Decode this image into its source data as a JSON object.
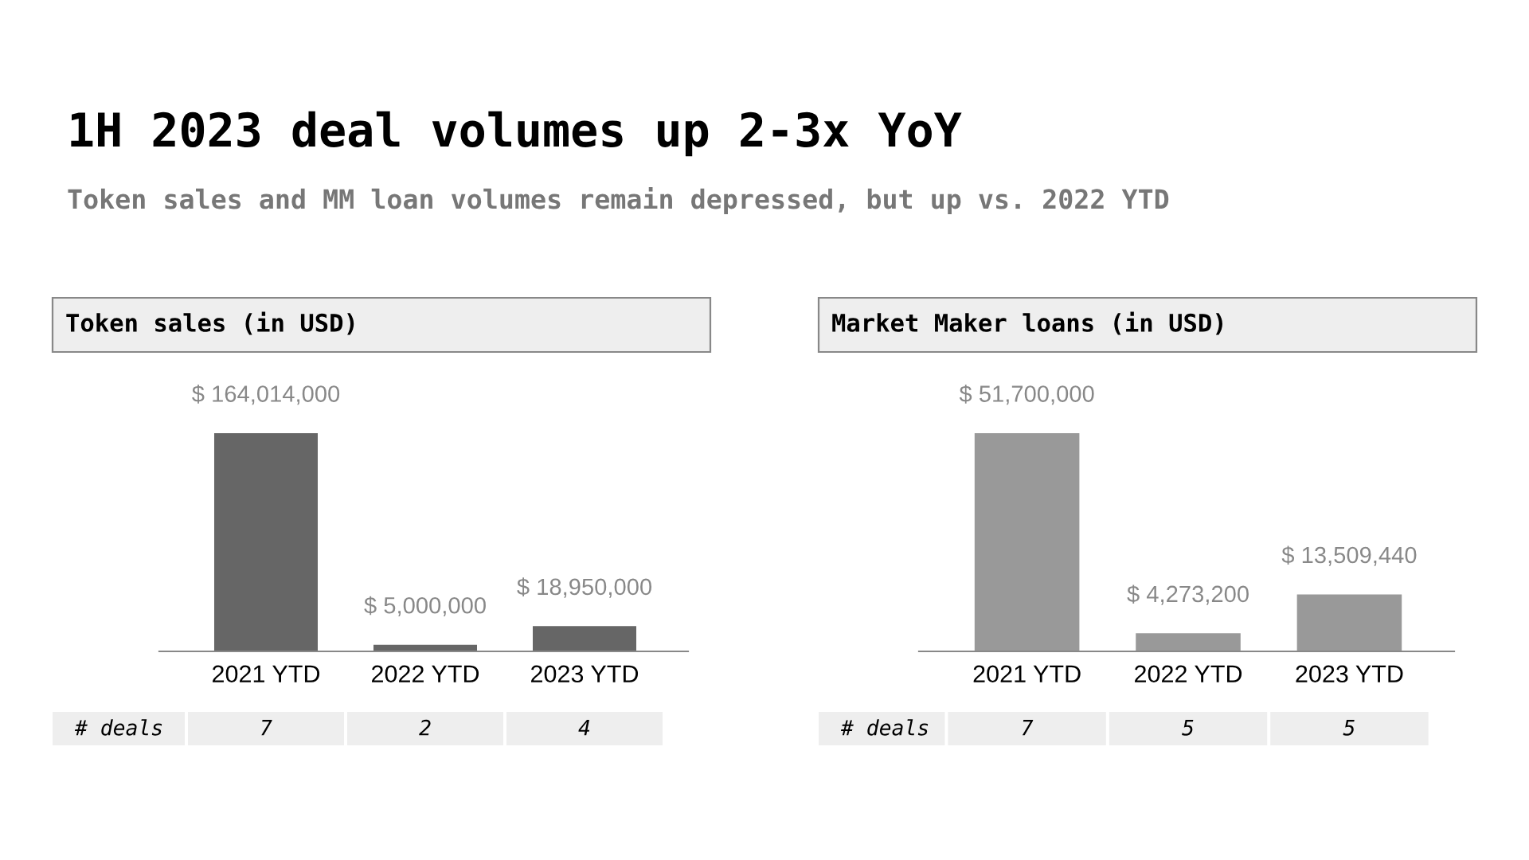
{
  "chart_data": [
    {
      "type": "bar",
      "title": "Token sales (in USD)",
      "categories": [
        "2021 YTD",
        "2022 YTD",
        "2023 YTD"
      ],
      "values": [
        164014000,
        5000000,
        18950000
      ],
      "value_labels": [
        "$ 164,014,000",
        "$ 5,000,000",
        "$ 18,950,000"
      ],
      "color": "#666666",
      "annotations": [
        "1H 2023 deal volumes up 2-3x YoY",
        "Token sales and MM loan volumes remain depressed, but up vs. 2022 YTD",
        "# deals",
        "7",
        "2",
        "4"
      ]
    },
    {
      "type": "bar",
      "title": "Market Maker loans (in USD)",
      "categories": [
        "2021 YTD",
        "2022 YTD",
        "2023 YTD"
      ],
      "values": [
        51700000,
        4273200,
        13509440
      ],
      "value_labels": [
        "$ 51,700,000",
        "$ 4,273,200",
        "$ 13,509,440"
      ],
      "color": "#999999",
      "annotations": [
        "# deals",
        "7",
        "5",
        "5"
      ]
    }
  ]
}
